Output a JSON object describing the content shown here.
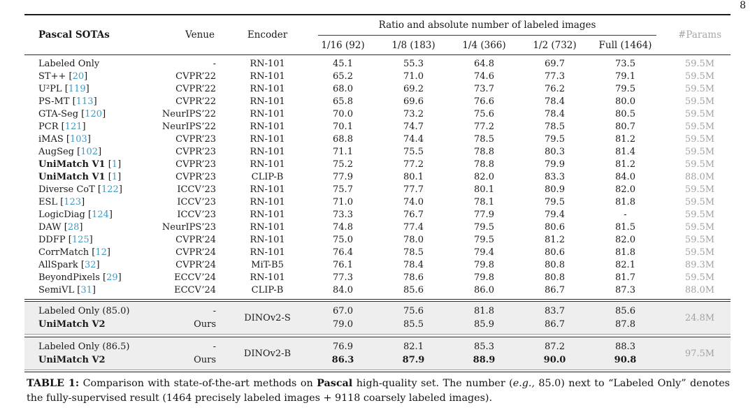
{
  "page": {
    "number": "8"
  },
  "colors": {
    "citation": "#4199c2",
    "params_gray": "#a2a2a2",
    "group_bg": "#eeeeee"
  },
  "table": {
    "header": {
      "col_method": "Pascal SOTAs",
      "col_venue": "Venue",
      "col_encoder": "Encoder",
      "span_label": "Ratio and absolute number of labeled images",
      "ratio_cols": [
        "1/16 (92)",
        "1/8 (183)",
        "1/4 (366)",
        "1/2 (732)",
        "Full (1464)"
      ],
      "col_params": "#Params"
    },
    "rows": [
      {
        "method": "Labeled Only",
        "cite": "",
        "bold": false,
        "venue": "-",
        "encoder": "RN-101",
        "values": [
          "45.1",
          "55.3",
          "64.8",
          "69.7",
          "73.5"
        ],
        "params": "59.5M"
      },
      {
        "method": "ST++",
        "cite": "20",
        "bold": false,
        "venue": "CVPR’22",
        "encoder": "RN-101",
        "values": [
          "65.2",
          "71.0",
          "74.6",
          "77.3",
          "79.1"
        ],
        "params": "59.5M"
      },
      {
        "method": "U²PL",
        "cite": "119",
        "bold": false,
        "venue": "CVPR’22",
        "encoder": "RN-101",
        "values": [
          "68.0",
          "69.2",
          "73.7",
          "76.2",
          "79.5"
        ],
        "params": "59.5M"
      },
      {
        "method": "PS-MT",
        "cite": "113",
        "bold": false,
        "venue": "CVPR’22",
        "encoder": "RN-101",
        "values": [
          "65.8",
          "69.6",
          "76.6",
          "78.4",
          "80.0"
        ],
        "params": "59.5M"
      },
      {
        "method": "GTA-Seg",
        "cite": "120",
        "bold": false,
        "venue": "NeurIPS’22",
        "encoder": "RN-101",
        "values": [
          "70.0",
          "73.2",
          "75.6",
          "78.4",
          "80.5"
        ],
        "params": "59.5M"
      },
      {
        "method": "PCR",
        "cite": "121",
        "bold": false,
        "venue": "NeurIPS’22",
        "encoder": "RN-101",
        "values": [
          "70.1",
          "74.7",
          "77.2",
          "78.5",
          "80.7"
        ],
        "params": "59.5M"
      },
      {
        "method": "iMAS",
        "cite": "103",
        "bold": false,
        "venue": "CVPR’23",
        "encoder": "RN-101",
        "values": [
          "68.8",
          "74.4",
          "78.5",
          "79.5",
          "81.2"
        ],
        "params": "59.5M"
      },
      {
        "method": "AugSeg",
        "cite": "102",
        "bold": false,
        "venue": "CVPR’23",
        "encoder": "RN-101",
        "values": [
          "71.1",
          "75.5",
          "78.8",
          "80.3",
          "81.4"
        ],
        "params": "59.5M"
      },
      {
        "method": "UniMatch V1",
        "cite": "1",
        "bold": true,
        "venue": "CVPR’23",
        "encoder": "RN-101",
        "values": [
          "75.2",
          "77.2",
          "78.8",
          "79.9",
          "81.2"
        ],
        "params": "59.5M"
      },
      {
        "method": "UniMatch V1",
        "cite": "1",
        "bold": true,
        "venue": "CVPR’23",
        "encoder": "CLIP-B",
        "values": [
          "77.9",
          "80.1",
          "82.0",
          "83.3",
          "84.0"
        ],
        "params": "88.0M"
      },
      {
        "method": "Diverse CoT",
        "cite": "122",
        "bold": false,
        "venue": "ICCV’23",
        "encoder": "RN-101",
        "values": [
          "75.7",
          "77.7",
          "80.1",
          "80.9",
          "82.0"
        ],
        "params": "59.5M"
      },
      {
        "method": "ESL",
        "cite": "123",
        "bold": false,
        "venue": "ICCV’23",
        "encoder": "RN-101",
        "values": [
          "71.0",
          "74.0",
          "78.1",
          "79.5",
          "81.8"
        ],
        "params": "59.5M"
      },
      {
        "method": "LogicDiag",
        "cite": "124",
        "bold": false,
        "venue": "ICCV’23",
        "encoder": "RN-101",
        "values": [
          "73.3",
          "76.7",
          "77.9",
          "79.4",
          "-"
        ],
        "params": "59.5M"
      },
      {
        "method": "DAW",
        "cite": "28",
        "bold": false,
        "venue": "NeurIPS’23",
        "encoder": "RN-101",
        "values": [
          "74.8",
          "77.4",
          "79.5",
          "80.6",
          "81.5"
        ],
        "params": "59.5M"
      },
      {
        "method": "DDFP",
        "cite": "125",
        "bold": false,
        "venue": "CVPR’24",
        "encoder": "RN-101",
        "values": [
          "75.0",
          "78.0",
          "79.5",
          "81.2",
          "82.0"
        ],
        "params": "59.5M"
      },
      {
        "method": "CorrMatch",
        "cite": "12",
        "bold": false,
        "venue": "CVPR’24",
        "encoder": "RN-101",
        "values": [
          "76.4",
          "78.5",
          "79.4",
          "80.6",
          "81.8"
        ],
        "params": "59.5M"
      },
      {
        "method": "AllSpark",
        "cite": "32",
        "bold": false,
        "venue": "CVPR’24",
        "encoder": "MiT-B5",
        "values": [
          "76.1",
          "78.4",
          "79.8",
          "80.8",
          "82.1"
        ],
        "params": "89.3M"
      },
      {
        "method": "BeyondPixels",
        "cite": "29",
        "bold": false,
        "venue": "ECCV’24",
        "encoder": "RN-101",
        "values": [
          "77.3",
          "78.6",
          "79.8",
          "80.8",
          "81.7"
        ],
        "params": "59.5M"
      },
      {
        "method": "SemiVL",
        "cite": "31",
        "bold": false,
        "venue": "ECCV’24",
        "encoder": "CLIP-B",
        "values": [
          "84.0",
          "85.6",
          "86.0",
          "86.7",
          "87.3"
        ],
        "params": "88.0M"
      }
    ],
    "groups": [
      {
        "encoder": "DINOv2-S",
        "params": "24.8M",
        "rows": [
          {
            "method": "Labeled Only (85.0)",
            "bold": false,
            "venue": "-",
            "values": [
              "67.0",
              "75.6",
              "81.8",
              "83.7",
              "85.6"
            ],
            "bold_values": false
          },
          {
            "method": "UniMatch V2",
            "bold": true,
            "venue": "Ours",
            "values": [
              "79.0",
              "85.5",
              "85.9",
              "86.7",
              "87.8"
            ],
            "bold_values": false
          }
        ]
      },
      {
        "encoder": "DINOv2-B",
        "params": "97.5M",
        "rows": [
          {
            "method": "Labeled Only (86.5)",
            "bold": false,
            "venue": "-",
            "values": [
              "76.9",
              "82.1",
              "85.3",
              "87.2",
              "88.3"
            ],
            "bold_values": false
          },
          {
            "method": "UniMatch V2",
            "bold": true,
            "venue": "Ours",
            "values": [
              "86.3",
              "87.9",
              "88.9",
              "90.0",
              "90.8"
            ],
            "bold_values": true
          }
        ]
      }
    ]
  },
  "caption": {
    "label": "TABLE 1:",
    "t1": " Comparison with state-of-the-art methods on ",
    "b1": "Pascal",
    "t2": " high-quality set. The number (",
    "i1": "e.g.,",
    "t3": " 85.0) next to “Labeled Only” denotes the fully-supervised result (1464 precisely labeled images + 9118 coarsely labeled images)."
  }
}
